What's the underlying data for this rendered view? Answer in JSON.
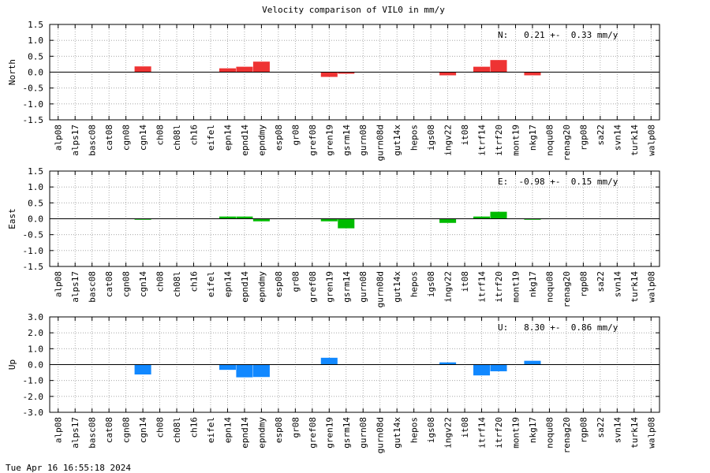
{
  "figure_title": "Velocity comparison of VIL0 in mm/y",
  "timestamp": "Tue Apr 16 16:55:18 2024",
  "chart_data": [
    {
      "type": "bar",
      "ylabel": "North",
      "ylim": [
        -1.5,
        1.5
      ],
      "yticks": [
        -1.5,
        -1.0,
        -0.5,
        0.0,
        0.5,
        1.0,
        1.5
      ],
      "ytick_labels": [
        "-1.5",
        "-1.0",
        "-0.5",
        "0.0",
        "0.5",
        "1.0",
        "1.5"
      ],
      "annotation": "N:   0.21 +-  0.33 mm/y",
      "color": "#ee3333",
      "grid": true,
      "categories": [
        "alp08",
        "alps17",
        "basc08",
        "cat08",
        "cgn08",
        "cgn14",
        "ch08",
        "ch08l",
        "ch16",
        "eifel",
        "epn14",
        "epnd14",
        "epndmy",
        "esp08",
        "gr08",
        "gref08",
        "gren19",
        "gsrm14",
        "gurn08",
        "gurn08d",
        "gut14x",
        "hepos",
        "igs08",
        "ingv22",
        "it08",
        "itrf14",
        "itrf20",
        "mont19",
        "nkg17",
        "noqu08",
        "renag20",
        "rgp08",
        "sa22",
        "svn14",
        "turk14",
        "walp08"
      ],
      "values": [
        0,
        0,
        0,
        0,
        0,
        0.18,
        0,
        0,
        0,
        0,
        0.12,
        0.17,
        0.33,
        0,
        0,
        0,
        -0.15,
        -0.05,
        0,
        0,
        0,
        0,
        0,
        -0.1,
        0,
        0.17,
        0.38,
        0,
        -0.1,
        0,
        0,
        0,
        0,
        0,
        0,
        0
      ]
    },
    {
      "type": "bar",
      "ylabel": "East",
      "ylim": [
        -1.5,
        1.5
      ],
      "yticks": [
        -1.5,
        -1.0,
        -0.5,
        0.0,
        0.5,
        1.0,
        1.5
      ],
      "ytick_labels": [
        "-1.5",
        "-1.0",
        "-0.5",
        "0.0",
        "0.5",
        "1.0",
        "1.5"
      ],
      "annotation": "E:  -0.98 +-  0.15 mm/y",
      "color": "#00bb00",
      "grid": true,
      "categories": [
        "alp08",
        "alps17",
        "basc08",
        "cat08",
        "cgn08",
        "cgn14",
        "ch08",
        "ch08l",
        "ch16",
        "eifel",
        "epn14",
        "epnd14",
        "epndmy",
        "esp08",
        "gr08",
        "gref08",
        "gren19",
        "gsrm14",
        "gurn08",
        "gurn08d",
        "gut14x",
        "hepos",
        "igs08",
        "ingv22",
        "it08",
        "itrf14",
        "itrf20",
        "mont19",
        "nkg17",
        "noqu08",
        "renag20",
        "rgp08",
        "sa22",
        "svn14",
        "turk14",
        "walp08"
      ],
      "values": [
        0,
        0,
        0,
        0,
        0,
        -0.03,
        0,
        0,
        0,
        0,
        0.07,
        0.07,
        -0.08,
        0,
        0,
        0,
        -0.08,
        -0.3,
        0,
        0,
        0,
        0,
        0,
        -0.13,
        0,
        0.07,
        0.22,
        0,
        -0.03,
        0,
        0,
        0,
        0,
        0,
        0,
        0
      ]
    },
    {
      "type": "bar",
      "ylabel": "Up",
      "ylim": [
        -3.0,
        3.0
      ],
      "yticks": [
        -3.0,
        -2.0,
        -1.0,
        0.0,
        1.0,
        2.0,
        3.0
      ],
      "ytick_labels": [
        "-3.0",
        "-2.0",
        "-1.0",
        "0.0",
        "1.0",
        "2.0",
        "3.0"
      ],
      "annotation": "U:   8.30 +-  0.86 mm/y",
      "color": "#1188ff",
      "grid": true,
      "categories": [
        "alp08",
        "alps17",
        "basc08",
        "cat08",
        "cgn08",
        "cgn14",
        "ch08",
        "ch08l",
        "ch16",
        "eifel",
        "epn14",
        "epnd14",
        "epndmy",
        "esp08",
        "gr08",
        "gref08",
        "gren19",
        "gsrm14",
        "gurn08",
        "gurn08d",
        "gut14x",
        "hepos",
        "igs08",
        "ingv22",
        "it08",
        "itrf14",
        "itrf20",
        "mont19",
        "nkg17",
        "noqu08",
        "renag20",
        "rgp08",
        "sa22",
        "svn14",
        "turk14",
        "walp08"
      ],
      "values": [
        0,
        0,
        0,
        0,
        0,
        -0.62,
        0,
        0,
        0,
        0,
        -0.33,
        -0.8,
        -0.78,
        0,
        0,
        0,
        0.43,
        0,
        0,
        0,
        0,
        0,
        0,
        0.14,
        0,
        -0.68,
        -0.42,
        0,
        0.24,
        0,
        0,
        0,
        0,
        0,
        0,
        0
      ]
    }
  ]
}
